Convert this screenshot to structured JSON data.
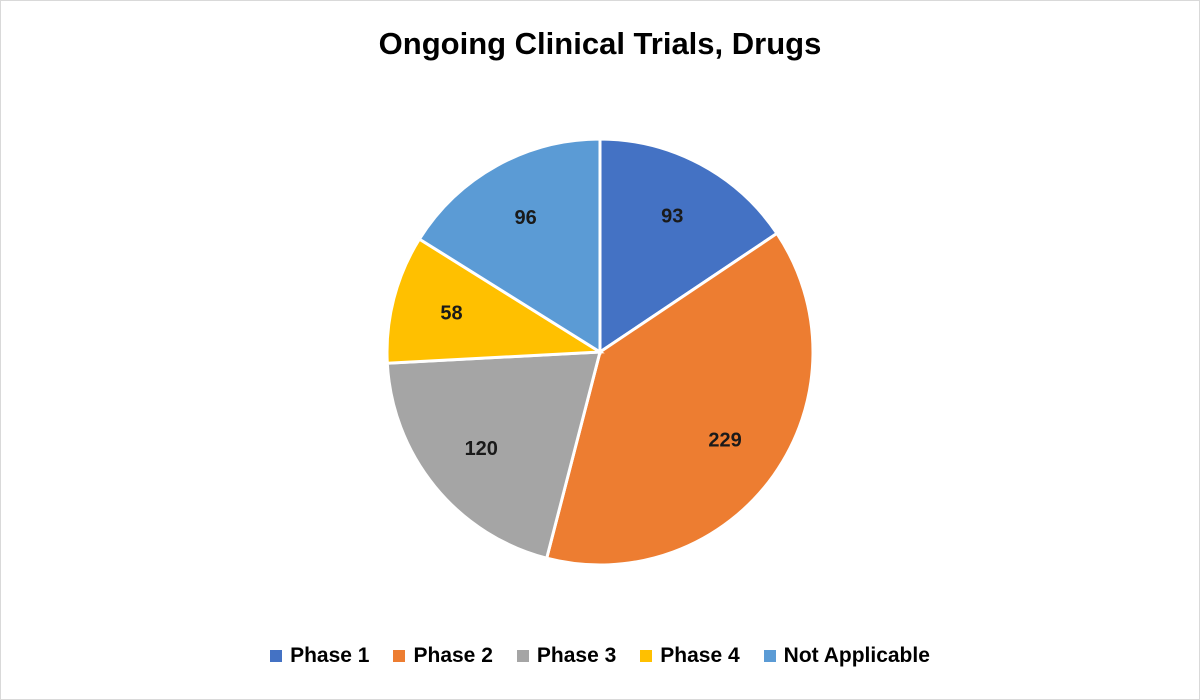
{
  "chart_data": {
    "type": "pie",
    "title": "Ongoing Clinical Trials, Drugs",
    "categories": [
      "Phase 1",
      "Phase 2",
      "Phase 3",
      "Phase 4",
      "Not Applicable"
    ],
    "values": [
      93,
      229,
      120,
      58,
      96
    ],
    "colors": [
      "#4472C4",
      "#ED7D31",
      "#A5A5A5",
      "#FFC000",
      "#5B9BD5"
    ],
    "start_angle_deg": 0,
    "direction": "clockwise",
    "legend_position": "bottom",
    "data_labels": "values"
  }
}
